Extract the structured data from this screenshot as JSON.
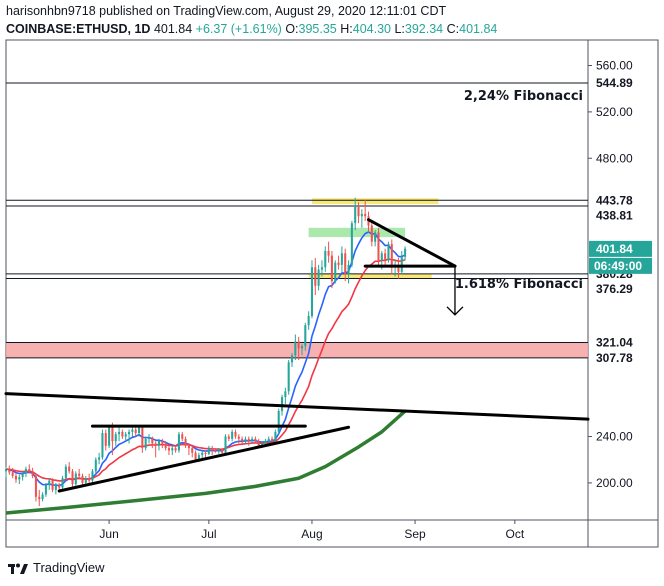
{
  "header": {
    "publish_line": "harisonhbn9718 published on TradingView.com, August 29, 2020 12:11:01 CDT",
    "symbol": "COINBASE:ETHUSD, 1D",
    "last": "401.84",
    "change": "+6.37 (+1.61%)",
    "o_label": "O:",
    "o": "395.35",
    "h_label": "H:",
    "h": "404.30",
    "l_label": "L:",
    "l": "392.34",
    "c_label": "C:",
    "c": "401.84"
  },
  "footer": {
    "brand": "TradingView"
  },
  "colors": {
    "up": "#26a69a",
    "down": "#ef5350",
    "ema_fast": "#2962ff",
    "ema_slow": "#f23645",
    "ma_long": "#2e7d32",
    "yellow_zone": "#f5e04a",
    "green_zone": "#8fe08f",
    "red_zone": "#f7a8a8",
    "last_price_tag": "#26a69a",
    "countdown_tag": "#26a69a"
  },
  "chart_data": {
    "type": "candlestick",
    "title": "",
    "y_axis": {
      "range": [
        168,
        582
      ],
      "ticks": [
        "560.00",
        "520.00",
        "480.00",
        "240.00",
        "200.00"
      ],
      "tick_values": [
        560,
        520,
        480,
        240,
        200
      ]
    },
    "x_axis": {
      "range": [
        "2020-05-01",
        "2020-10-23"
      ],
      "ticks": [
        {
          "label": "Jun",
          "date": "2020-06-01"
        },
        {
          "label": "Jul",
          "date": "2020-07-01"
        },
        {
          "label": "Aug",
          "date": "2020-08-01"
        },
        {
          "label": "Sep",
          "date": "2020-09-01"
        },
        {
          "label": "Oct",
          "date": "2020-10-01"
        }
      ]
    },
    "price_levels": [
      {
        "value": 544.89,
        "label": "544.89"
      },
      {
        "value": 443.78,
        "label": "443.78"
      },
      {
        "value": 438.81,
        "label": "438.81"
      },
      {
        "value": 380.28,
        "label": "380.28"
      },
      {
        "value": 376.29,
        "label": "376.29"
      },
      {
        "value": 321.04,
        "label": "321.04"
      },
      {
        "value": 307.78,
        "label": "307.78"
      }
    ],
    "last_price": {
      "value": 401.84,
      "label": "401.84"
    },
    "countdown": {
      "value": 390,
      "label": "06:49:00"
    },
    "annotations": [
      {
        "text": "2,24% Fibonacci",
        "value": 544.89
      },
      {
        "text": "1.618% Fibonacci",
        "value": 380.28
      }
    ],
    "zones": [
      {
        "kind": "yellow",
        "from_date": "2020-08-01",
        "to_date": "2020-09-08",
        "low": 440.5,
        "high": 445.5
      },
      {
        "kind": "green",
        "from_date": "2020-07-31",
        "to_date": "2020-08-29",
        "low": 412,
        "high": 420
      },
      {
        "kind": "yellow",
        "from_date": "2020-07-31",
        "to_date": "2020-09-06",
        "low": 376.5,
        "high": 380.5
      },
      {
        "kind": "red",
        "from_date": "2020-05-01",
        "to_date": "2020-10-23",
        "low": 307.78,
        "high": 321.04
      }
    ],
    "trendlines": [
      {
        "name": "long-resistance",
        "points": [
          [
            "2020-05-01",
            277
          ],
          [
            "2020-10-23",
            255
          ]
        ]
      },
      {
        "name": "triangle-top-june",
        "points": [
          [
            "2020-05-27",
            249
          ],
          [
            "2020-07-30",
            249
          ]
        ]
      },
      {
        "name": "triangle-bottom-june",
        "points": [
          [
            "2020-05-17",
            193
          ],
          [
            "2020-08-12",
            248
          ]
        ]
      },
      {
        "name": "flag-top-aug",
        "points": [
          [
            "2020-08-18",
            427
          ],
          [
            "2020-09-13",
            387
          ]
        ]
      },
      {
        "name": "flag-bottom-aug",
        "points": [
          [
            "2020-08-17",
            387
          ],
          [
            "2020-09-13",
            387
          ]
        ]
      }
    ],
    "arrow": {
      "date": "2020-09-13",
      "from": 386,
      "to": 345
    },
    "candles": [
      [
        "2020-05-01",
        210,
        214,
        205,
        212
      ],
      [
        "2020-05-02",
        212,
        215,
        207,
        209
      ],
      [
        "2020-05-03",
        209,
        213,
        204,
        206
      ],
      [
        "2020-05-04",
        206,
        209,
        200,
        203
      ],
      [
        "2020-05-05",
        203,
        207,
        199,
        205
      ],
      [
        "2020-05-06",
        205,
        210,
        202,
        208
      ],
      [
        "2020-05-07",
        208,
        214,
        205,
        212
      ],
      [
        "2020-05-08",
        212,
        216,
        208,
        210
      ],
      [
        "2020-05-09",
        210,
        213,
        204,
        206
      ],
      [
        "2020-05-10",
        206,
        208,
        184,
        188
      ],
      [
        "2020-05-11",
        188,
        194,
        180,
        186
      ],
      [
        "2020-05-12",
        186,
        192,
        184,
        190
      ],
      [
        "2020-05-13",
        190,
        200,
        188,
        198
      ],
      [
        "2020-05-14",
        198,
        204,
        194,
        202
      ],
      [
        "2020-05-15",
        202,
        204,
        192,
        194
      ],
      [
        "2020-05-16",
        194,
        200,
        190,
        198
      ],
      [
        "2020-05-17",
        198,
        200,
        193,
        196
      ],
      [
        "2020-05-18",
        196,
        206,
        194,
        204
      ],
      [
        "2020-05-19",
        204,
        216,
        202,
        214
      ],
      [
        "2020-05-20",
        214,
        218,
        208,
        210
      ],
      [
        "2020-05-21",
        210,
        212,
        196,
        199
      ],
      [
        "2020-05-22",
        199,
        210,
        197,
        208
      ],
      [
        "2020-05-23",
        208,
        212,
        204,
        206
      ],
      [
        "2020-05-24",
        206,
        208,
        198,
        200
      ],
      [
        "2020-05-25",
        200,
        206,
        197,
        204
      ],
      [
        "2020-05-26",
        204,
        208,
        200,
        202
      ],
      [
        "2020-05-27",
        202,
        212,
        200,
        210
      ],
      [
        "2020-05-28",
        210,
        222,
        208,
        220
      ],
      [
        "2020-05-29",
        220,
        226,
        216,
        222
      ],
      [
        "2020-05-30",
        222,
        246,
        220,
        243
      ],
      [
        "2020-05-31",
        243,
        246,
        228,
        232
      ],
      [
        "2020-06-01",
        232,
        250,
        230,
        248
      ],
      [
        "2020-06-02",
        248,
        252,
        224,
        236
      ],
      [
        "2020-06-03",
        236,
        244,
        232,
        242
      ],
      [
        "2020-06-04",
        242,
        248,
        236,
        244
      ],
      [
        "2020-06-05",
        244,
        246,
        238,
        240
      ],
      [
        "2020-06-06",
        240,
        244,
        236,
        242
      ],
      [
        "2020-06-07",
        242,
        246,
        234,
        244
      ],
      [
        "2020-06-08",
        244,
        248,
        240,
        246
      ],
      [
        "2020-06-09",
        246,
        250,
        240,
        243
      ],
      [
        "2020-06-10",
        243,
        250,
        240,
        248
      ],
      [
        "2020-06-11",
        248,
        249,
        226,
        230
      ],
      [
        "2020-06-12",
        230,
        240,
        228,
        238
      ],
      [
        "2020-06-13",
        238,
        242,
        234,
        239
      ],
      [
        "2020-06-14",
        239,
        240,
        230,
        234
      ],
      [
        "2020-06-15",
        234,
        236,
        222,
        232
      ],
      [
        "2020-06-16",
        232,
        238,
        228,
        236
      ],
      [
        "2020-06-17",
        236,
        238,
        230,
        234
      ],
      [
        "2020-06-18",
        234,
        236,
        228,
        230
      ],
      [
        "2020-06-19",
        230,
        232,
        224,
        228
      ],
      [
        "2020-06-20",
        228,
        232,
        224,
        230
      ],
      [
        "2020-06-21",
        230,
        232,
        226,
        228
      ],
      [
        "2020-06-22",
        228,
        244,
        226,
        242
      ],
      [
        "2020-06-23",
        242,
        244,
        236,
        238
      ],
      [
        "2020-06-24",
        238,
        240,
        230,
        232
      ],
      [
        "2020-06-25",
        232,
        234,
        224,
        230
      ],
      [
        "2020-06-26",
        230,
        232,
        222,
        226
      ],
      [
        "2020-06-27",
        226,
        228,
        218,
        220
      ],
      [
        "2020-06-28",
        220,
        226,
        218,
        224
      ],
      [
        "2020-06-29",
        224,
        228,
        220,
        226
      ],
      [
        "2020-06-30",
        226,
        228,
        222,
        225
      ],
      [
        "2020-07-01",
        225,
        232,
        224,
        230
      ],
      [
        "2020-07-02",
        230,
        232,
        224,
        228
      ],
      [
        "2020-07-03",
        228,
        230,
        226,
        227
      ],
      [
        "2020-07-04",
        227,
        230,
        225,
        229
      ],
      [
        "2020-07-05",
        229,
        230,
        224,
        226
      ],
      [
        "2020-07-06",
        226,
        242,
        225,
        240
      ],
      [
        "2020-07-07",
        240,
        242,
        236,
        238
      ],
      [
        "2020-07-08",
        238,
        246,
        236,
        244
      ],
      [
        "2020-07-09",
        244,
        246,
        238,
        240
      ],
      [
        "2020-07-10",
        240,
        242,
        234,
        238
      ],
      [
        "2020-07-11",
        238,
        240,
        234,
        236
      ],
      [
        "2020-07-12",
        236,
        240,
        234,
        238
      ],
      [
        "2020-07-13",
        238,
        240,
        232,
        236
      ],
      [
        "2020-07-14",
        236,
        240,
        234,
        238
      ],
      [
        "2020-07-15",
        238,
        240,
        234,
        236
      ],
      [
        "2020-07-16",
        236,
        238,
        230,
        232
      ],
      [
        "2020-07-17",
        232,
        236,
        230,
        234
      ],
      [
        "2020-07-18",
        234,
        238,
        232,
        236
      ],
      [
        "2020-07-19",
        236,
        240,
        234,
        238
      ],
      [
        "2020-07-20",
        238,
        240,
        234,
        236
      ],
      [
        "2020-07-21",
        236,
        246,
        234,
        244
      ],
      [
        "2020-07-22",
        244,
        264,
        242,
        262
      ],
      [
        "2020-07-23",
        262,
        276,
        258,
        274
      ],
      [
        "2020-07-24",
        274,
        282,
        268,
        279
      ],
      [
        "2020-07-25",
        279,
        306,
        276,
        304
      ],
      [
        "2020-07-26",
        304,
        312,
        300,
        310
      ],
      [
        "2020-07-27",
        310,
        328,
        306,
        322
      ],
      [
        "2020-07-28",
        322,
        326,
        306,
        316
      ],
      [
        "2020-07-29",
        316,
        320,
        310,
        318
      ],
      [
        "2020-07-30",
        318,
        338,
        314,
        336
      ],
      [
        "2020-07-31",
        336,
        348,
        332,
        344
      ],
      [
        "2020-08-01",
        344,
        392,
        342,
        386
      ],
      [
        "2020-08-02",
        386,
        394,
        362,
        370
      ],
      [
        "2020-08-03",
        370,
        388,
        366,
        384
      ],
      [
        "2020-08-04",
        384,
        392,
        378,
        386
      ],
      [
        "2020-08-05",
        386,
        404,
        382,
        400
      ],
      [
        "2020-08-06",
        400,
        408,
        390,
        396
      ],
      [
        "2020-08-07",
        396,
        400,
        368,
        374
      ],
      [
        "2020-08-08",
        374,
        392,
        372,
        390
      ],
      [
        "2020-08-09",
        390,
        396,
        384,
        388
      ],
      [
        "2020-08-10",
        388,
        404,
        382,
        398
      ],
      [
        "2020-08-11",
        398,
        402,
        374,
        380
      ],
      [
        "2020-08-12",
        380,
        392,
        372,
        388
      ],
      [
        "2020-08-13",
        388,
        426,
        386,
        424
      ],
      [
        "2020-08-14",
        424,
        446,
        418,
        438
      ],
      [
        "2020-08-15",
        438,
        442,
        424,
        430
      ],
      [
        "2020-08-16",
        430,
        436,
        420,
        432
      ],
      [
        "2020-08-17",
        432,
        444,
        426,
        430
      ],
      [
        "2020-08-18",
        430,
        434,
        416,
        422
      ],
      [
        "2020-08-19",
        422,
        426,
        404,
        408
      ],
      [
        "2020-08-20",
        408,
        418,
        404,
        416
      ],
      [
        "2020-08-21",
        416,
        420,
        388,
        392
      ],
      [
        "2020-08-22",
        392,
        400,
        384,
        398
      ],
      [
        "2020-08-23",
        398,
        402,
        388,
        392
      ],
      [
        "2020-08-24",
        392,
        408,
        390,
        406
      ],
      [
        "2020-08-25",
        406,
        410,
        380,
        386
      ],
      [
        "2020-08-26",
        386,
        392,
        378,
        388
      ],
      [
        "2020-08-27",
        388,
        394,
        376,
        382
      ],
      [
        "2020-08-28",
        382,
        400,
        380,
        395
      ],
      [
        "2020-08-29",
        395,
        404,
        392,
        402
      ]
    ],
    "indicators": [
      {
        "kind": "ema_fast",
        "color_key": "ema_fast",
        "period": 9
      },
      {
        "kind": "ema_slow",
        "color_key": "ema_slow",
        "period": 21
      },
      {
        "kind": "ma_long",
        "color_key": "ma_long",
        "points": [
          [
            "2020-05-01",
            174
          ],
          [
            "2020-05-20",
            179
          ],
          [
            "2020-06-10",
            185
          ],
          [
            "2020-06-30",
            191
          ],
          [
            "2020-07-15",
            197
          ],
          [
            "2020-07-28",
            204
          ],
          [
            "2020-08-05",
            214
          ],
          [
            "2020-08-15",
            231
          ],
          [
            "2020-08-22",
            244
          ],
          [
            "2020-08-29",
            262
          ]
        ]
      }
    ]
  }
}
